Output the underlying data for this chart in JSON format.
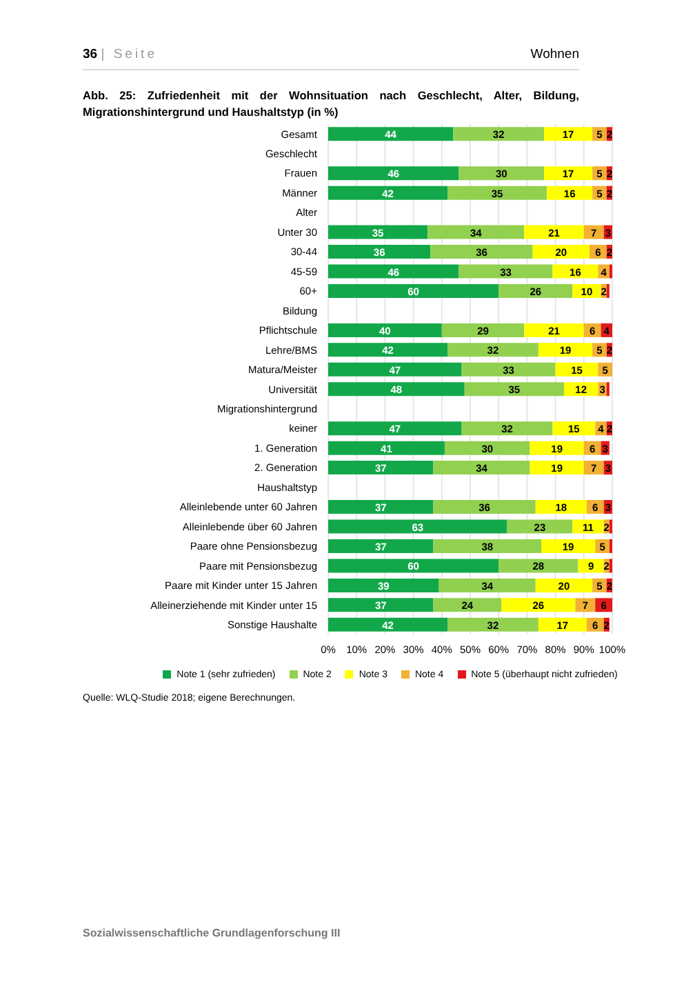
{
  "chart_data": {
    "type": "bar",
    "orientation": "horizontal",
    "stacked": true,
    "title": "Abb. 25: Zufriedenheit mit der Wohnsituation nach Geschlecht, Alter, Bildung, Migrationshintergrund und Haushaltstyp (in %)",
    "annotations": [
      "36 | Seite",
      "Wohnen",
      "Quelle: WLQ-Studie 2018; eigene Berechnungen.",
      "Sozialwissenschaftliche Grundlagenforschung III"
    ],
    "categories": [
      "Gesamt",
      "Geschlecht",
      "Frauen",
      "Männer",
      "Alter",
      "Unter 30",
      "30-44",
      "45-59",
      "60+",
      "Bildung",
      "Pflichtschule",
      "Lehre/BMS",
      "Matura/Meister",
      "Universität",
      "Migrationshintergrund",
      "keiner",
      "1. Generation",
      "2. Generation",
      "Haushaltstyp",
      "Alleinlebende unter 60 Jahren",
      "Alleinlebende über 60 Jahren",
      "Paare ohne Pensionsbezug",
      "Paare mit Pensionsbezug",
      "Paare mit Kinder unter 15 Jahren",
      "Alleinerziehende mit Kinder unter 15",
      "Sonstige Haushalte"
    ],
    "series": [
      {
        "name": "Note 1 (sehr zufrieden)",
        "color": "#12a84a",
        "values": [
          44,
          null,
          46,
          42,
          null,
          35,
          36,
          46,
          60,
          null,
          40,
          42,
          47,
          48,
          null,
          47,
          41,
          37,
          null,
          37,
          63,
          37,
          60,
          39,
          37,
          42
        ],
        "value_labels": [
          "44",
          null,
          "46",
          "42",
          null,
          "35",
          "36",
          "46",
          "60",
          null,
          "40",
          "42",
          "47",
          "48",
          null,
          "47",
          "41",
          "37",
          null,
          "37",
          "63",
          "37",
          "60",
          "39",
          "37",
          "42"
        ]
      },
      {
        "name": "Note 2",
        "color": "#92d050",
        "values": [
          32,
          null,
          30,
          35,
          null,
          34,
          36,
          33,
          26,
          null,
          29,
          32,
          33,
          35,
          null,
          32,
          30,
          34,
          null,
          36,
          23,
          38,
          28,
          34,
          24,
          32
        ],
        "value_labels": [
          "32",
          null,
          "30",
          "35",
          null,
          "34",
          "36",
          "33",
          "26",
          null,
          "29",
          "32",
          "33",
          "35",
          null,
          "32",
          "30",
          "34",
          null,
          "36",
          "23",
          "38",
          "28",
          "34",
          "24",
          "32"
        ]
      },
      {
        "name": "Note 3",
        "color": "#ffff00",
        "values": [
          17,
          null,
          17,
          16,
          null,
          21,
          20,
          16,
          10,
          null,
          21,
          19,
          15,
          12,
          null,
          15,
          19,
          19,
          null,
          18,
          11,
          19,
          9,
          20,
          26,
          17
        ],
        "value_labels": [
          "17",
          null,
          "17",
          "16",
          null,
          "21",
          "20",
          "16",
          "10",
          null,
          "21",
          "19",
          "15",
          "12",
          null,
          "15",
          "19",
          "19",
          null,
          "18",
          "11",
          "19",
          "9",
          "20",
          "26",
          "17"
        ]
      },
      {
        "name": "Note 4",
        "color": "#f2b134",
        "values": [
          5,
          null,
          5,
          5,
          null,
          7,
          6,
          4,
          2,
          null,
          6,
          5,
          5,
          3,
          null,
          4,
          6,
          7,
          null,
          6,
          2,
          5,
          2,
          5,
          7,
          6
        ],
        "value_labels": [
          "5",
          null,
          "5",
          "5",
          null,
          "7",
          "6",
          "4",
          "2",
          null,
          "6",
          "5",
          "5",
          "3",
          null,
          "4",
          "6",
          "7",
          null,
          "6",
          "2",
          "5",
          "2",
          "5",
          "7",
          "6"
        ]
      },
      {
        "name": "Note 5 (überhaupt nicht zufrieden)",
        "color": "#e31a1c",
        "values": [
          2,
          null,
          2,
          2,
          null,
          3,
          2,
          1,
          1,
          null,
          4,
          2,
          null,
          1,
          null,
          2,
          3,
          3,
          null,
          3,
          1,
          1,
          1,
          2,
          6,
          2
        ],
        "value_labels": [
          "2",
          null,
          "2",
          "2",
          null,
          "3",
          "2",
          null,
          null,
          null,
          "4",
          "2",
          null,
          null,
          null,
          "2",
          "3",
          "3",
          null,
          "3",
          null,
          null,
          null,
          "2",
          "6",
          "2"
        ]
      }
    ],
    "xlim": [
      0,
      100
    ],
    "xticks": [
      {
        "value": 0,
        "label": "0%"
      },
      {
        "value": 10,
        "label": "10%"
      },
      {
        "value": 20,
        "label": "20%"
      },
      {
        "value": 30,
        "label": "30%"
      },
      {
        "value": 40,
        "label": "40%"
      },
      {
        "value": 50,
        "label": "50%"
      },
      {
        "value": 60,
        "label": "60%"
      },
      {
        "value": 70,
        "label": "70%"
      },
      {
        "value": 80,
        "label": "80%"
      },
      {
        "value": 90,
        "label": "90%"
      },
      {
        "value": 100,
        "label": "100%"
      }
    ],
    "grid": "x",
    "legend": "bottom"
  }
}
